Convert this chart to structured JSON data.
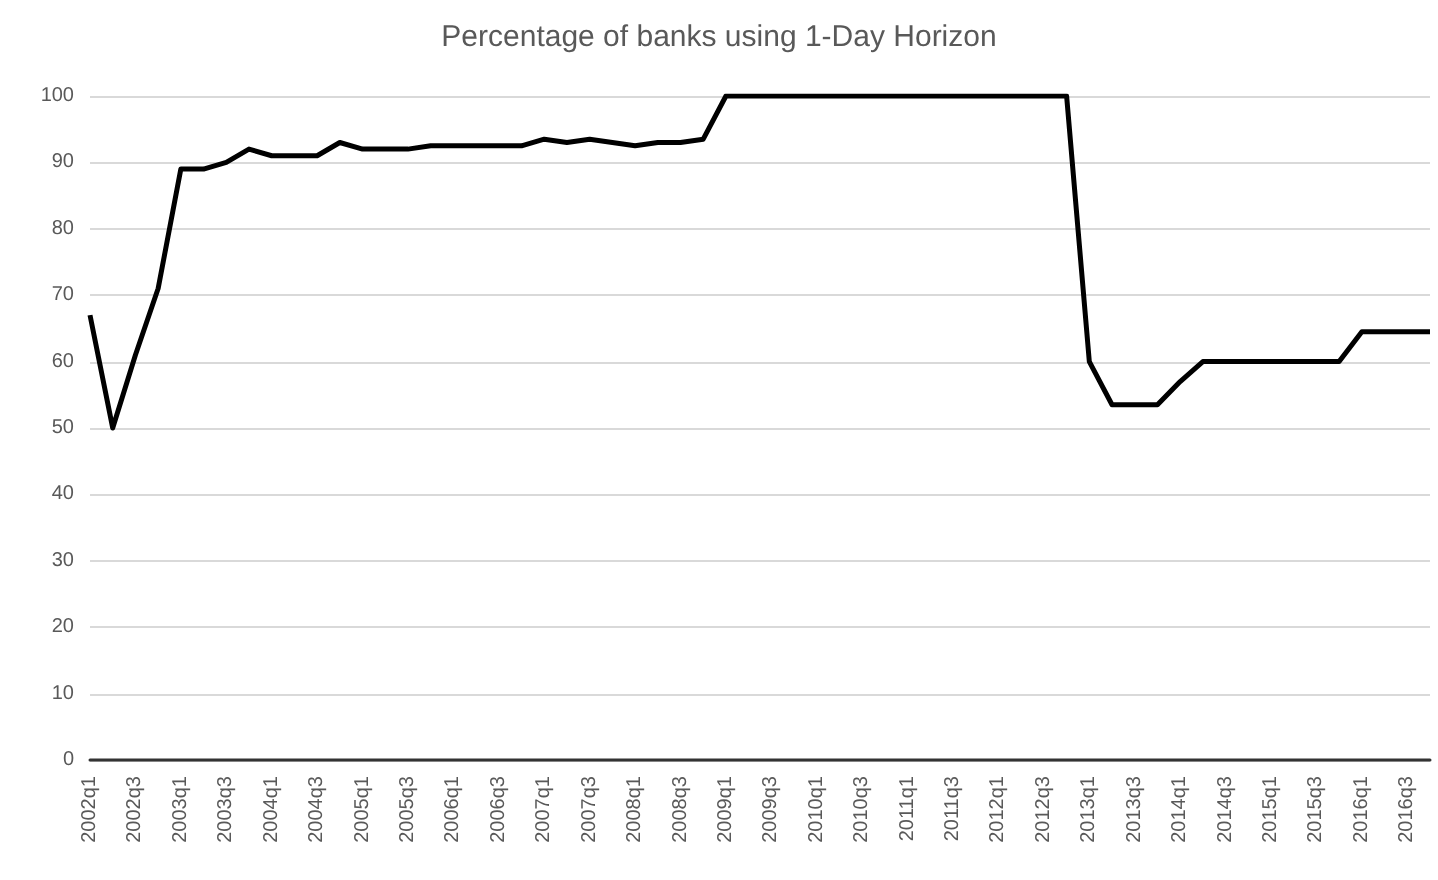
{
  "chart_data": {
    "type": "line",
    "title": "Percentage of banks using 1-Day Horizon",
    "categories": [
      "2002q1",
      null,
      "2002q3",
      null,
      "2003q1",
      null,
      "2003q3",
      null,
      "2004q1",
      null,
      "2004q3",
      null,
      "2005q1",
      null,
      "2005q3",
      null,
      "2006q1",
      null,
      "2006q3",
      null,
      "2007q1",
      null,
      "2007q3",
      null,
      "2008q1",
      null,
      "2008q3",
      null,
      "2009q1",
      null,
      "2009q3",
      null,
      "2010q1",
      null,
      "2010q3",
      null,
      "2011q1",
      null,
      "2011q3",
      null,
      "2012q1",
      null,
      "2012q3",
      null,
      "2013q1",
      null,
      "2013q3",
      null,
      "2014q1",
      null,
      "2014q3",
      null,
      "2015q1",
      null,
      "2015q3",
      null,
      "2016q1",
      null,
      "2016q3",
      null
    ],
    "series": [
      {
        "color": "#000000",
        "values": [
          67,
          50,
          61,
          71,
          89,
          89,
          90,
          92,
          91,
          91,
          91,
          93,
          92,
          92,
          92,
          92.5,
          92.5,
          92.5,
          92.5,
          92.5,
          93.5,
          93,
          93.5,
          93,
          92.5,
          93,
          93,
          93.5,
          100,
          100,
          100,
          100,
          100,
          100,
          100,
          100,
          100,
          100,
          100,
          100,
          100,
          100,
          100,
          100,
          60,
          53.5,
          53.5,
          53.5,
          57,
          60,
          60,
          60,
          60,
          60,
          60,
          60,
          64.5,
          64.5,
          64.5,
          64.5
        ]
      }
    ],
    "ylim": [
      0,
      100
    ],
    "yticks": [
      0,
      10,
      20,
      30,
      40,
      50,
      60,
      70,
      80,
      90,
      100
    ],
    "grid": "y",
    "marker": "none",
    "line_style": "solid"
  }
}
